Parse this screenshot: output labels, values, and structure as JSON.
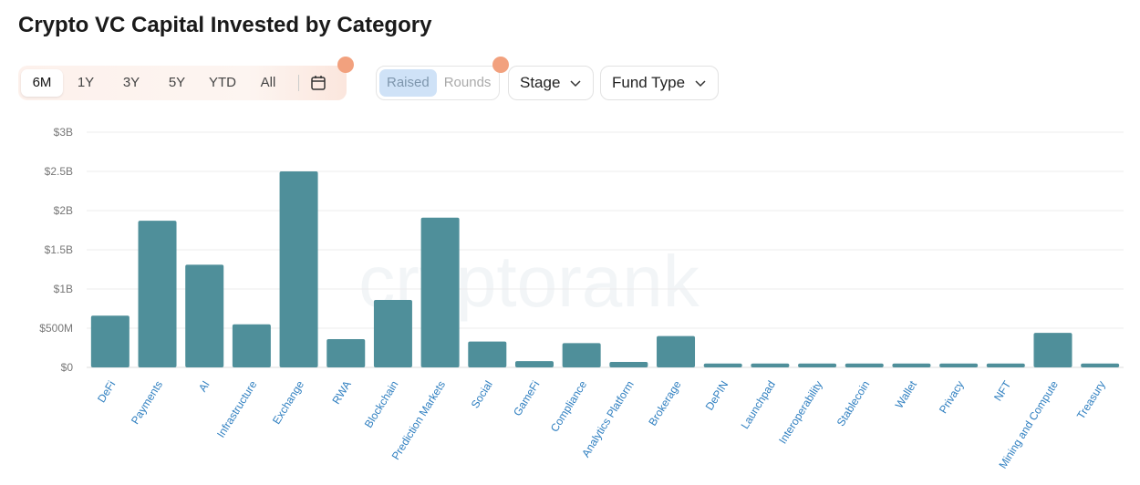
{
  "header": {
    "title": "Crypto VC Capital Invested by Category"
  },
  "controls": {
    "ranges": [
      "6M",
      "1Y",
      "3Y",
      "5Y",
      "YTD",
      "All"
    ],
    "metrics": [
      "Raised",
      "Rounds"
    ],
    "dropdowns": [
      "Stage",
      "Fund Type"
    ]
  },
  "watermark": "cryptorank",
  "chart_data": {
    "type": "bar",
    "color": "#4f8f9a",
    "grid": true,
    "categories": [
      "DeFi",
      "Payments",
      "AI",
      "Infrastructure",
      "Exchange",
      "RWA",
      "Blockchain",
      "Prediction Markets",
      "Social",
      "GameFi",
      "Compliance",
      "Analytics Platform",
      "Brokerage",
      "DePIN",
      "Launchpad",
      "Interoperability",
      "Stablecoin",
      "Wallet",
      "Privacy",
      "NFT",
      "Mining and Compute",
      "Treasury"
    ],
    "values": [
      660000000,
      1870000000,
      1310000000,
      550000000,
      2500000000,
      360000000,
      860000000,
      1910000000,
      330000000,
      80000000,
      310000000,
      70000000,
      400000000,
      50000000,
      50000000,
      50000000,
      50000000,
      50000000,
      50000000,
      50000000,
      440000000,
      50000000
    ],
    "ylim": [
      0,
      3000000000
    ],
    "yticks": [
      {
        "value": 0,
        "label": "$0"
      },
      {
        "value": 500000000,
        "label": "$500M"
      },
      {
        "value": 1000000000,
        "label": "$1B"
      },
      {
        "value": 1500000000,
        "label": "$1.5B"
      },
      {
        "value": 2000000000,
        "label": "$2B"
      },
      {
        "value": 2500000000,
        "label": "$2.5B"
      },
      {
        "value": 3000000000,
        "label": "$3B"
      }
    ]
  }
}
